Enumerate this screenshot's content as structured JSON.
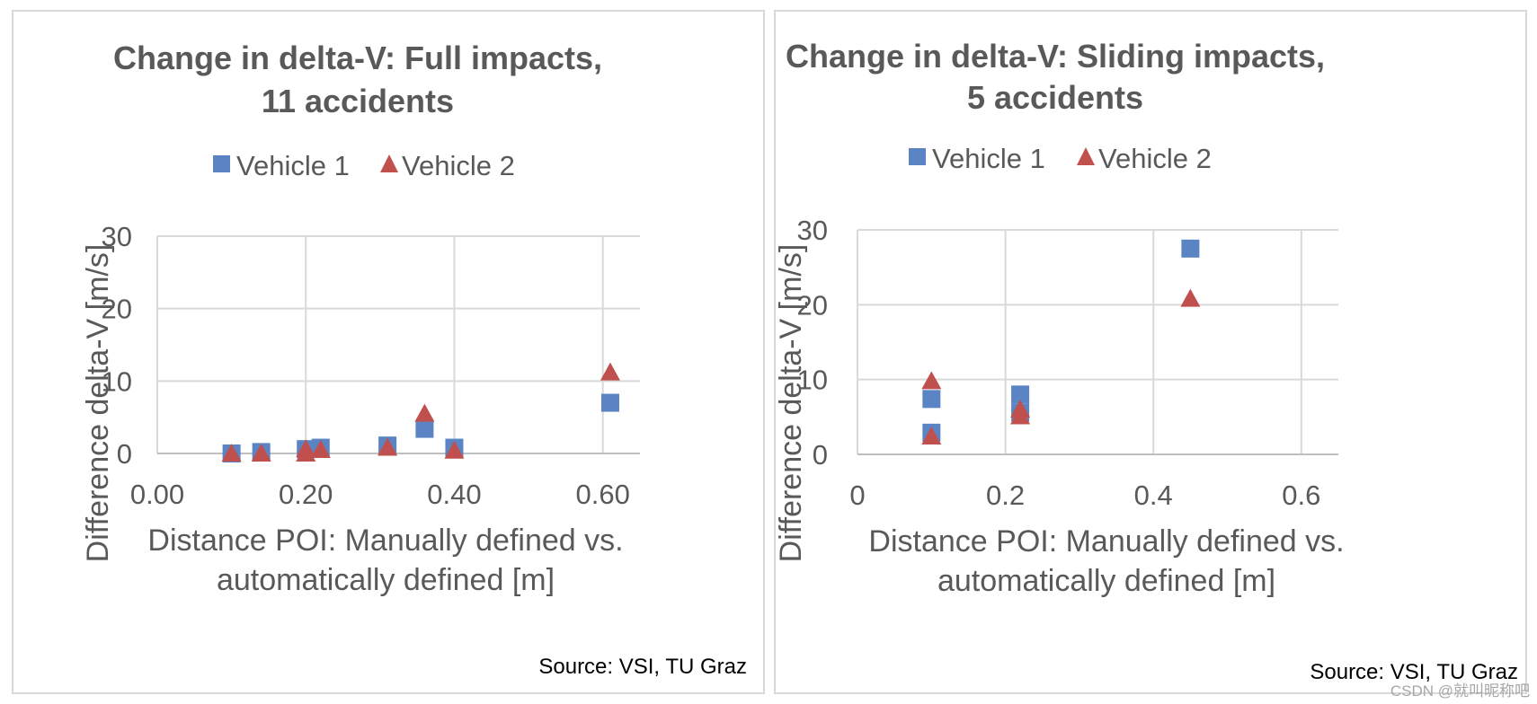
{
  "source_text": "Source: VSI, TU Graz",
  "watermark": "CSDN @就叫昵称吧",
  "colors": {
    "vehicle1": "#5b84c4",
    "vehicle2": "#c0504d",
    "grid": "#d9d9d9",
    "text": "#595959"
  },
  "chart_data": [
    {
      "type": "scatter",
      "title_lines": [
        "Change in delta-V: Full impacts,",
        "11 accidents"
      ],
      "xlabel_lines": [
        "Distance POI: Manually defined vs.",
        "automatically defined [m]"
      ],
      "ylabel": "Difference delta-V [m/s]",
      "xlim": [
        0,
        0.65
      ],
      "ylim": [
        0,
        30
      ],
      "xticks": [
        0,
        0.2,
        0.4,
        0.6
      ],
      "xtick_labels": [
        "0.00",
        "0.20",
        "0.40",
        "0.60"
      ],
      "yticks": [
        0,
        10,
        20,
        30
      ],
      "ytick_labels": [
        "0",
        "10",
        "20",
        "30"
      ],
      "legend": [
        "Vehicle 1",
        "Vehicle 2"
      ],
      "series": [
        {
          "name": "Vehicle 1",
          "marker": "square",
          "points": [
            [
              0.1,
              0.0
            ],
            [
              0.14,
              0.2
            ],
            [
              0.2,
              0.6
            ],
            [
              0.22,
              0.8
            ],
            [
              0.31,
              1.1
            ],
            [
              0.36,
              3.4
            ],
            [
              0.4,
              0.8
            ],
            [
              0.61,
              7.0
            ]
          ]
        },
        {
          "name": "Vehicle 2",
          "marker": "triangle",
          "points": [
            [
              0.1,
              0.0
            ],
            [
              0.14,
              0.0
            ],
            [
              0.2,
              0.0
            ],
            [
              0.2,
              0.6
            ],
            [
              0.22,
              0.5
            ],
            [
              0.31,
              0.8
            ],
            [
              0.36,
              5.5
            ],
            [
              0.4,
              0.4
            ],
            [
              0.61,
              11.2
            ]
          ]
        }
      ]
    },
    {
      "type": "scatter",
      "title_lines": [
        "Change in delta-V: Sliding impacts,",
        "5 accidents"
      ],
      "xlabel_lines": [
        "Distance POI: Manually defined vs.",
        "automatically defined [m]"
      ],
      "ylabel": "Difference delta-V [m/s]",
      "xlim": [
        0,
        0.65
      ],
      "ylim": [
        0,
        30
      ],
      "xticks": [
        0,
        0.2,
        0.4,
        0.6
      ],
      "xtick_labels": [
        "0",
        "0.2",
        "0.4",
        "0.6"
      ],
      "yticks": [
        0,
        10,
        20,
        30
      ],
      "ytick_labels": [
        "0",
        "10",
        "20",
        "30"
      ],
      "legend": [
        "Vehicle 1",
        "Vehicle 2"
      ],
      "series": [
        {
          "name": "Vehicle 1",
          "marker": "square",
          "points": [
            [
              0.1,
              7.4
            ],
            [
              0.1,
              2.9
            ],
            [
              0.22,
              8.0
            ],
            [
              0.22,
              5.6
            ],
            [
              0.45,
              27.5
            ]
          ]
        },
        {
          "name": "Vehicle 2",
          "marker": "triangle",
          "points": [
            [
              0.1,
              9.8
            ],
            [
              0.1,
              2.4
            ],
            [
              0.22,
              6.0
            ],
            [
              0.22,
              5.1
            ],
            [
              0.45,
              20.8
            ]
          ]
        }
      ]
    }
  ]
}
